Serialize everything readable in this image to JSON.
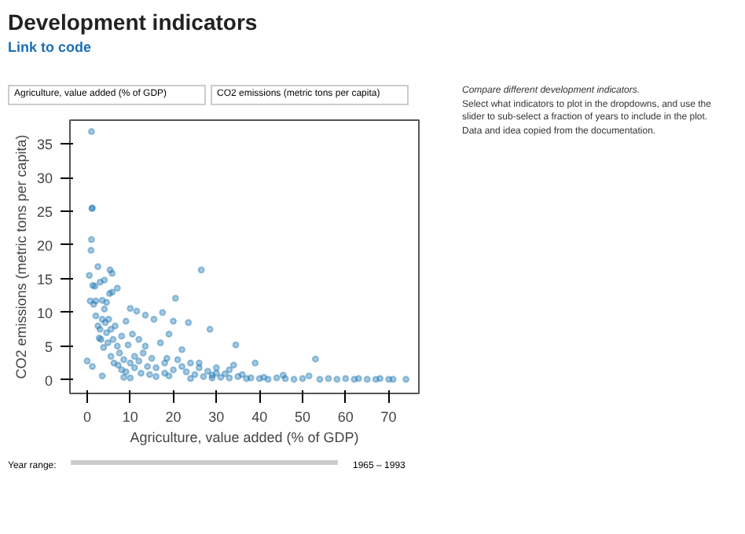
{
  "chart_data": {
    "type": "scatter",
    "title": "Development indicators",
    "subtitle": "Link to code",
    "xlabel": "Agriculture, value added (% of GDP)",
    "ylabel": "CO2 emissions (metric tons per capita)",
    "annotations": [
      "Agriculture, value added (% of GDP)",
      "CO2 emissions (metric tons per capita)",
      "Year range:",
      "1965 – 1993",
      "Compare different development indicators.",
      "Select what indicators to plot in the dropdowns, and use the slider to sub-select a fraction of years to include in the plot.",
      "Data and idea copied from the documentation."
    ],
    "xlim": [
      -4,
      77
    ],
    "ylim": [
      -2,
      38.5
    ],
    "xticks": [
      0,
      10,
      20,
      30,
      40,
      50,
      60,
      70
    ],
    "yticks": [
      0,
      5,
      10,
      15,
      20,
      25,
      30,
      35
    ],
    "grid": false,
    "marker": "circle",
    "series": [
      {
        "color": "#1f77b4",
        "x": [
          1,
          1.2,
          1.1,
          1,
          0.9,
          0.5,
          2.5,
          5.3,
          5.8,
          26.5,
          1.3,
          1.8,
          3,
          4,
          7,
          0.7,
          1.5,
          2,
          3.5,
          4.5,
          5.2,
          5.8,
          10,
          11.5,
          13.5,
          20.5,
          17.5,
          23.5,
          20,
          28.5,
          19,
          0,
          1.2,
          3.5,
          2,
          2.5,
          3,
          3.2,
          3.5,
          4,
          4.2,
          4.5,
          4.8,
          5,
          5.5,
          6,
          6.5,
          7,
          7.5,
          8,
          8.5,
          9,
          9.5,
          2.8,
          3.8,
          5.5,
          6.2,
          7.2,
          8,
          9,
          10,
          11,
          12,
          13,
          14,
          15,
          16,
          17,
          18,
          12.5,
          14.5,
          16,
          18,
          19,
          20,
          21,
          22,
          23,
          24,
          25,
          26,
          27,
          28,
          29,
          30,
          31,
          32,
          33,
          34,
          34.5,
          35,
          36,
          37,
          38,
          39,
          40,
          41,
          42,
          44,
          45.5,
          46,
          48,
          50,
          51.5,
          53,
          54,
          56,
          58,
          60,
          62,
          63,
          65,
          67,
          68,
          70,
          71,
          74,
          15.5,
          10.5,
          12,
          13.5,
          18.5,
          22,
          26,
          30,
          33,
          10,
          11,
          8.5,
          24,
          29
        ],
        "values": [
          36.8,
          25.5,
          25.4,
          20.8,
          19.2,
          15.5,
          16.8,
          16.3,
          15.8,
          16.3,
          14,
          13.9,
          14.5,
          14.8,
          13.6,
          11.7,
          11.2,
          11.7,
          11.8,
          11.5,
          12.8,
          13,
          10.6,
          10.2,
          9.6,
          12.1,
          10,
          8.5,
          8.7,
          7.5,
          6.8,
          2.8,
          2,
          0.6,
          9.5,
          8,
          7.5,
          6,
          9,
          10.5,
          8.5,
          7,
          5.5,
          9,
          7.5,
          6,
          8,
          5,
          4,
          6.5,
          3,
          8.7,
          5.2,
          6.2,
          4.8,
          3.5,
          2.5,
          2.2,
          1.5,
          1.2,
          2.5,
          3.5,
          2.8,
          4,
          2,
          3.2,
          1.8,
          5.5,
          2.5,
          1,
          0.8,
          0.5,
          1,
          0.6,
          1.5,
          3,
          2,
          1.2,
          2.5,
          0.8,
          1.8,
          0.5,
          1.3,
          0.7,
          1,
          0.4,
          0.9,
          0.3,
          2.2,
          5.2,
          0.5,
          0.8,
          0.2,
          0.3,
          2.5,
          0.2,
          0.4,
          0.1,
          0.3,
          0.7,
          0.2,
          0.1,
          0.2,
          0.6,
          3.1,
          0.1,
          0.2,
          0.1,
          0.2,
          0.1,
          0.2,
          0.1,
          0.1,
          0.2,
          0.1,
          0.1,
          0.1,
          9,
          6.8,
          6,
          5,
          3.2,
          4.5,
          2.5,
          1.8,
          1.5,
          0.3,
          1.8,
          0.4,
          0.2,
          0.3
        ]
      }
    ]
  }
}
